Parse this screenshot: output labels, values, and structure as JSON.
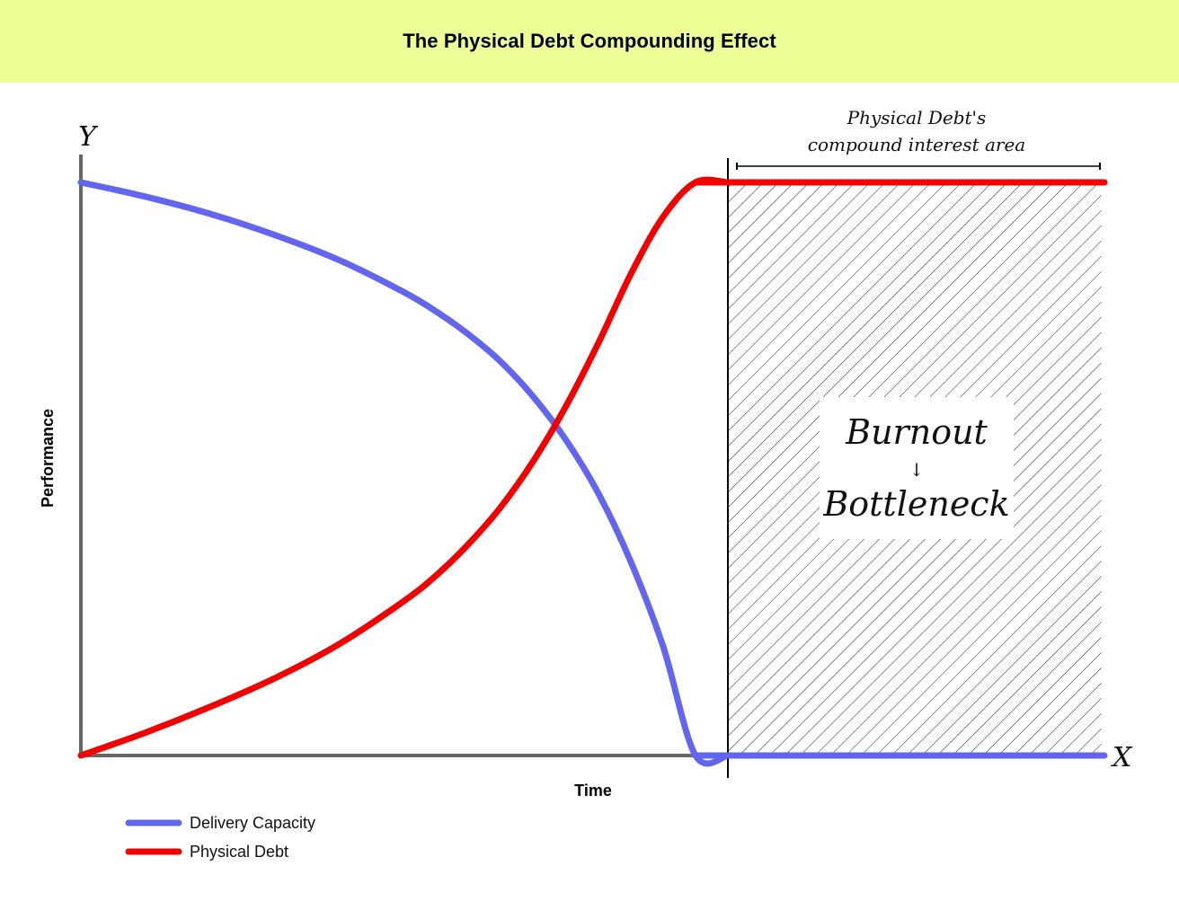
{
  "colors": {
    "banner": "#ecfe95",
    "delivery": "#6266ef",
    "debt": "#f20000",
    "axis": "#666666"
  },
  "chart_data": {
    "type": "line",
    "title": "The Physical Debt Compounding Effect",
    "xlabel": "Time",
    "ylabel": "Performance",
    "x_axis_letter": "X",
    "y_axis_letter": "Y",
    "xlim": [
      0,
      100
    ],
    "ylim": [
      0,
      100
    ],
    "grid": false,
    "legend_position": "bottom-left",
    "series": [
      {
        "name": "Delivery Capacity",
        "color": "#6266ef",
        "x": [
          0,
          10,
          20,
          30,
          40,
          50,
          55,
          60,
          65,
          70,
          75,
          80,
          85,
          90,
          95,
          100
        ],
        "y": [
          100,
          97.5,
          94.5,
          90.8,
          86.4,
          80.8,
          77.4,
          73.4,
          68.6,
          62.5,
          55.0,
          45.7,
          33.8,
          19.0,
          0,
          0
        ],
        "x_ext": [
          95,
          100,
          155
        ],
        "y_ext": [
          0,
          0,
          0
        ]
      },
      {
        "name": "Physical Debt",
        "color": "#f20000",
        "x": [
          0,
          10,
          20,
          30,
          40,
          50,
          55,
          60,
          65,
          70,
          75,
          80,
          85,
          90,
          95,
          100
        ],
        "y": [
          0,
          4,
          8.5,
          13.5,
          19.5,
          27,
          31.5,
          37,
          43.5,
          51.5,
          61,
          72,
          84,
          94,
          100,
          100
        ],
        "x_ext": [
          95,
          100,
          155
        ],
        "y_ext": [
          100,
          100,
          100
        ]
      }
    ],
    "annotations": {
      "region_start_x": 100,
      "region_end_x": 158,
      "region_label_line1": "Physical Debt's",
      "region_label_line2": "compound interest area",
      "box_line1": "Burnout",
      "box_arrow": "↓",
      "box_line2": "Bottleneck"
    }
  }
}
